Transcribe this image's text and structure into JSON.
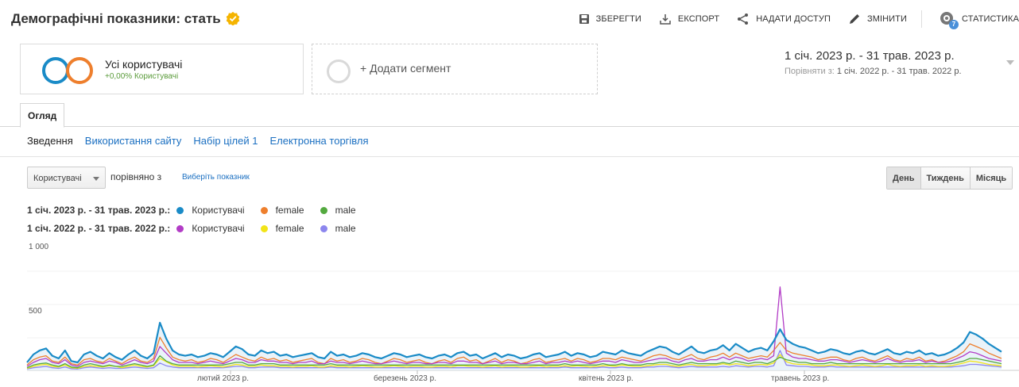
{
  "header": {
    "title": "Демографічні показники: стать",
    "actions": [
      {
        "label": "ЗБЕРЕГТИ",
        "icon": "save-icon"
      },
      {
        "label": "ЕКСПОРТ",
        "icon": "export-icon"
      },
      {
        "label": "НАДАТИ ДОСТУП",
        "icon": "share-icon"
      },
      {
        "label": "ЗМІНИТИ",
        "icon": "edit-icon"
      },
      {
        "label": "СТАТИСТИКА",
        "icon": "insights-icon",
        "badge": "7"
      }
    ]
  },
  "segments": {
    "active": {
      "name": "Усі користувачі",
      "sub": "+0,00% Користувачі"
    },
    "add_label": "+ Додати сегмент"
  },
  "date_range": {
    "main": "1 січ. 2023 р. - 31 трав. 2023 р.",
    "compare_prefix": "Порівняти з:",
    "compare_range": "1 січ. 2022 р. - 31 трав. 2022 р."
  },
  "tabs": {
    "active": "Огляд"
  },
  "subnav": [
    "Зведення",
    "Використання сайту",
    "Набір цілей 1",
    "Електронна торгівля"
  ],
  "metric": {
    "selected": "Користувачі",
    "compare_text": "порівняно з",
    "pick_label": "Виберіть показник"
  },
  "period_buttons": [
    "День",
    "Тиждень",
    "Місяць"
  ],
  "legend": [
    {
      "range": "1 січ. 2023 р. - 31 трав. 2023 р.:",
      "items": [
        {
          "label": "Користувачі",
          "color": "#1a8bc7"
        },
        {
          "label": "female",
          "color": "#ee7f2d"
        },
        {
          "label": "male",
          "color": "#53a93f"
        }
      ]
    },
    {
      "range": "1 січ. 2022 р. - 31 трав. 2022 р.:",
      "items": [
        {
          "label": "Користувачі",
          "color": "#b23cc6"
        },
        {
          "label": "female",
          "color": "#f2e418"
        },
        {
          "label": "male",
          "color": "#8c86ee"
        }
      ]
    }
  ],
  "chart_data": {
    "type": "line",
    "y_ticks": [
      "1 000",
      "500"
    ],
    "ylim": [
      0,
      1000
    ],
    "x_labels": [
      "лютий 2023 р.",
      "березень 2023 р.",
      "квітень 2023 р.",
      "травень 2023 р."
    ],
    "series": [
      {
        "name": "Користувачі",
        "period": "2023",
        "color": "#1a8bc7",
        "fill": true,
        "values": [
          60,
          120,
          150,
          165,
          110,
          90,
          150,
          70,
          60,
          120,
          140,
          110,
          90,
          130,
          100,
          80,
          120,
          150,
          110,
          90,
          130,
          360,
          240,
          150,
          120,
          110,
          120,
          100,
          110,
          130,
          120,
          100,
          140,
          180,
          160,
          120,
          110,
          150,
          130,
          140,
          110,
          120,
          100,
          110,
          120,
          130,
          100,
          90,
          140,
          110,
          120,
          100,
          110,
          130,
          120,
          100,
          90,
          110,
          130,
          120,
          100,
          110,
          120,
          100,
          90,
          110,
          120,
          100,
          130,
          140,
          110,
          120,
          90,
          110,
          130,
          100,
          120,
          110,
          90,
          100,
          120,
          130,
          100,
          110,
          120,
          140,
          110,
          130,
          120,
          100,
          110,
          140,
          130,
          120,
          150,
          130,
          120,
          110,
          140,
          160,
          180,
          170,
          140,
          120,
          150,
          180,
          140,
          130,
          150,
          160,
          190,
          150,
          200,
          170,
          140,
          160,
          170,
          150,
          220,
          310,
          230,
          200,
          180,
          170,
          150,
          130,
          140,
          160,
          150,
          130,
          120,
          140,
          150,
          130,
          120,
          140,
          160,
          130,
          120,
          140,
          130,
          150,
          120,
          130,
          110,
          120,
          140,
          170,
          210,
          290,
          270,
          240,
          200,
          170,
          140
        ]
      },
      {
        "name": "female",
        "period": "2023",
        "color": "#ee7f2d",
        "values": [
          40,
          80,
          100,
          110,
          70,
          60,
          100,
          50,
          40,
          80,
          90,
          70,
          60,
          90,
          70,
          50,
          80,
          100,
          70,
          60,
          90,
          250,
          170,
          100,
          80,
          70,
          80,
          60,
          70,
          90,
          80,
          60,
          90,
          120,
          100,
          80,
          70,
          100,
          80,
          90,
          70,
          80,
          60,
          70,
          80,
          90,
          60,
          50,
          90,
          70,
          80,
          60,
          70,
          90,
          80,
          60,
          50,
          70,
          90,
          80,
          60,
          70,
          80,
          60,
          50,
          70,
          80,
          60,
          90,
          100,
          70,
          80,
          50,
          70,
          90,
          60,
          80,
          70,
          50,
          60,
          80,
          90,
          60,
          70,
          80,
          90,
          70,
          90,
          80,
          60,
          70,
          90,
          90,
          80,
          100,
          90,
          80,
          70,
          90,
          110,
          120,
          110,
          90,
          80,
          100,
          120,
          90,
          80,
          100,
          110,
          130,
          100,
          130,
          110,
          90,
          100,
          110,
          100,
          150,
          210,
          150,
          130,
          120,
          110,
          100,
          80,
          90,
          100,
          100,
          80,
          70,
          90,
          100,
          80,
          70,
          90,
          110,
          80,
          70,
          90,
          80,
          100,
          70,
          80,
          60,
          70,
          90,
          110,
          140,
          200,
          180,
          160,
          130,
          110,
          90
        ]
      },
      {
        "name": "male",
        "period": "2023",
        "color": "#53a93f",
        "values": [
          20,
          40,
          50,
          55,
          40,
          30,
          50,
          25,
          20,
          40,
          50,
          40,
          30,
          40,
          30,
          30,
          40,
          50,
          40,
          30,
          40,
          110,
          70,
          50,
          40,
          40,
          40,
          40,
          40,
          40,
          40,
          40,
          50,
          60,
          60,
          40,
          40,
          50,
          50,
          50,
          40,
          40,
          40,
          40,
          40,
          40,
          40,
          40,
          50,
          40,
          40,
          40,
          40,
          40,
          40,
          40,
          40,
          40,
          40,
          40,
          40,
          40,
          40,
          40,
          40,
          40,
          40,
          40,
          40,
          40,
          40,
          40,
          40,
          40,
          40,
          40,
          40,
          40,
          40,
          40,
          40,
          40,
          40,
          40,
          40,
          50,
          40,
          40,
          40,
          40,
          40,
          50,
          40,
          40,
          50,
          40,
          40,
          40,
          50,
          50,
          60,
          60,
          50,
          40,
          50,
          60,
          50,
          50,
          50,
          50,
          60,
          50,
          70,
          60,
          50,
          60,
          60,
          50,
          70,
          100,
          80,
          70,
          60,
          60,
          50,
          50,
          50,
          60,
          50,
          50,
          50,
          50,
          50,
          50,
          50,
          50,
          50,
          50,
          50,
          50,
          50,
          50,
          50,
          50,
          50,
          50,
          50,
          60,
          70,
          90,
          90,
          80,
          70,
          60,
          50
        ]
      },
      {
        "name": "Користувачі",
        "period": "2022",
        "color": "#b23cc6",
        "values": [
          30,
          60,
          80,
          90,
          60,
          50,
          80,
          40,
          30,
          60,
          70,
          60,
          50,
          70,
          60,
          40,
          60,
          80,
          60,
          50,
          70,
          180,
          130,
          80,
          60,
          60,
          60,
          50,
          60,
          70,
          60,
          50,
          70,
          90,
          80,
          60,
          60,
          80,
          70,
          70,
          60,
          60,
          50,
          60,
          60,
          70,
          50,
          50,
          70,
          60,
          60,
          50,
          60,
          70,
          60,
          50,
          50,
          60,
          70,
          60,
          50,
          60,
          60,
          50,
          50,
          60,
          60,
          50,
          70,
          70,
          60,
          60,
          50,
          60,
          70,
          50,
          60,
          60,
          50,
          50,
          60,
          70,
          50,
          60,
          60,
          70,
          60,
          70,
          60,
          50,
          60,
          70,
          70,
          60,
          80,
          70,
          60,
          60,
          70,
          80,
          90,
          90,
          70,
          60,
          80,
          90,
          70,
          70,
          80,
          80,
          100,
          80,
          100,
          90,
          70,
          80,
          90,
          80,
          110,
          630,
          130,
          100,
          90,
          90,
          80,
          70,
          70,
          80,
          80,
          70,
          60,
          70,
          80,
          70,
          60,
          70,
          90,
          70,
          60,
          70,
          70,
          80,
          60,
          70,
          60,
          60,
          70,
          90,
          110,
          140,
          130,
          110,
          90,
          80,
          70
        ]
      },
      {
        "name": "female",
        "period": "2022",
        "color": "#f2e418",
        "values": [
          15,
          30,
          40,
          45,
          30,
          25,
          40,
          20,
          15,
          30,
          35,
          30,
          25,
          35,
          30,
          20,
          30,
          40,
          30,
          25,
          35,
          90,
          65,
          40,
          30,
          30,
          30,
          25,
          30,
          35,
          30,
          25,
          35,
          45,
          40,
          30,
          30,
          40,
          35,
          35,
          30,
          30,
          25,
          30,
          30,
          35,
          25,
          25,
          35,
          30,
          30,
          25,
          30,
          35,
          30,
          25,
          25,
          30,
          35,
          30,
          25,
          30,
          30,
          25,
          25,
          30,
          30,
          25,
          35,
          35,
          30,
          30,
          25,
          30,
          35,
          25,
          30,
          30,
          25,
          25,
          30,
          35,
          25,
          30,
          30,
          35,
          30,
          35,
          30,
          25,
          30,
          35,
          35,
          30,
          40,
          35,
          30,
          30,
          35,
          40,
          45,
          45,
          35,
          30,
          40,
          45,
          35,
          35,
          40,
          40,
          50,
          40,
          50,
          45,
          35,
          40,
          45,
          40,
          55,
          120,
          65,
          50,
          45,
          45,
          40,
          35,
          35,
          40,
          40,
          35,
          30,
          35,
          40,
          35,
          30,
          35,
          45,
          35,
          30,
          35,
          35,
          40,
          30,
          35,
          30,
          30,
          35,
          45,
          55,
          70,
          65,
          55,
          45,
          40,
          35
        ]
      },
      {
        "name": "male",
        "period": "2022",
        "color": "#8c86ee",
        "values": [
          10,
          20,
          25,
          30,
          20,
          15,
          25,
          12,
          10,
          20,
          25,
          20,
          15,
          20,
          15,
          15,
          20,
          25,
          20,
          15,
          20,
          55,
          35,
          25,
          20,
          20,
          20,
          20,
          20,
          20,
          20,
          20,
          25,
          30,
          30,
          20,
          20,
          25,
          25,
          25,
          20,
          20,
          20,
          20,
          20,
          20,
          20,
          20,
          25,
          20,
          20,
          20,
          20,
          20,
          20,
          20,
          20,
          20,
          20,
          20,
          20,
          20,
          20,
          20,
          20,
          20,
          20,
          20,
          20,
          20,
          20,
          20,
          20,
          20,
          20,
          20,
          20,
          20,
          20,
          20,
          20,
          20,
          20,
          20,
          20,
          25,
          20,
          20,
          20,
          20,
          20,
          25,
          20,
          20,
          25,
          20,
          20,
          20,
          25,
          25,
          30,
          30,
          25,
          20,
          25,
          30,
          25,
          25,
          25,
          25,
          30,
          25,
          35,
          30,
          25,
          30,
          30,
          25,
          35,
          150,
          40,
          35,
          30,
          30,
          25,
          25,
          25,
          30,
          25,
          25,
          25,
          25,
          25,
          25,
          25,
          25,
          25,
          25,
          25,
          25,
          25,
          25,
          25,
          25,
          25,
          25,
          25,
          30,
          35,
          45,
          45,
          40,
          35,
          30,
          25
        ]
      }
    ]
  }
}
